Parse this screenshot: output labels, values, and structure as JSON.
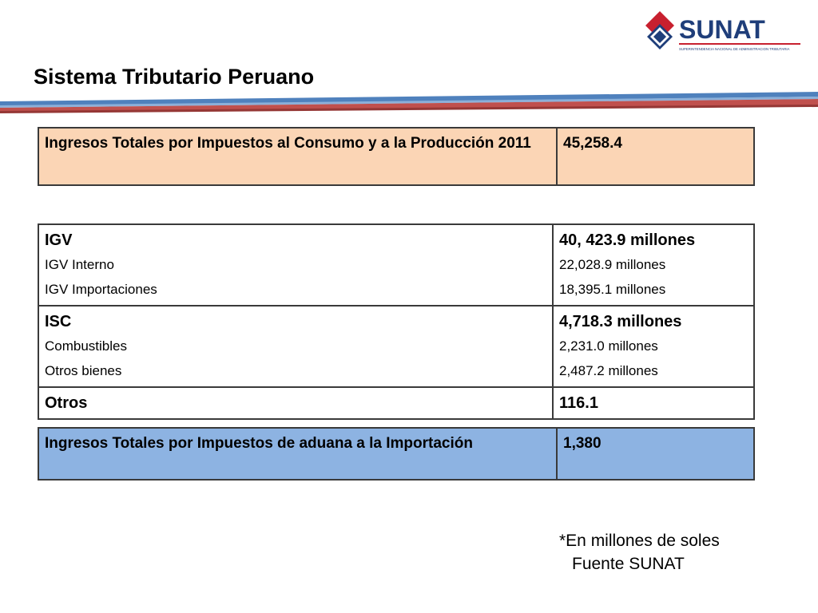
{
  "logo": {
    "name": "SUNAT",
    "tagline": "SUPERINTENDENCIA NACIONAL DE ADMINISTRACION TRIBUTARIA",
    "colors": {
      "text": "#1f3e7a",
      "red": "#c8202f",
      "blue": "#1f3e7a"
    }
  },
  "title": "Sistema Tributario Peruano",
  "stripes": {
    "colors": [
      "#4f81bd",
      "#8cb0d9",
      "#c0504d",
      "#953735"
    ]
  },
  "consumo_table": {
    "label": "Ingresos Totales por Impuestos al Consumo y a la Producción 2011",
    "value": "45,258.4",
    "background": "#fbd5b5"
  },
  "detail_table": {
    "rows": [
      {
        "label": "IGV",
        "value": "40, 423.9 millones",
        "items": [
          {
            "label": "IGV Interno",
            "value": "22,028.9 millones"
          },
          {
            "label": "IGV Importaciones",
            "value": "18,395.1 millones"
          }
        ]
      },
      {
        "label": "ISC",
        "value": "4,718.3 millones",
        "items": [
          {
            "label": "Combustibles",
            "value": "2,231.0 millones"
          },
          {
            "label": "Otros bienes",
            "value": "2,487.2 millones"
          }
        ]
      },
      {
        "label": "Otros",
        "value": "116.1",
        "items": []
      }
    ]
  },
  "aduana_table": {
    "label": "Ingresos Totales por Impuestos de aduana a la Importación",
    "value": "1,380",
    "background": "#8db3e2"
  },
  "note": {
    "line1": "*En millones de soles",
    "line2": "Fuente SUNAT"
  }
}
